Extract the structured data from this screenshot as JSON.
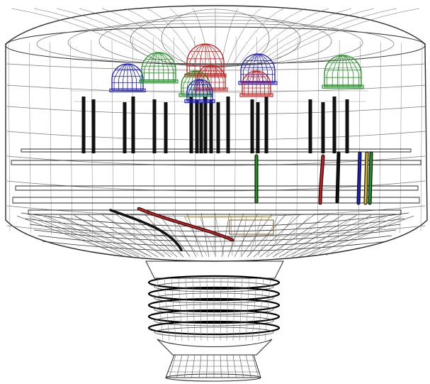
{
  "figure": {
    "background": "#ffffff",
    "wire_color": "#2a2a2a",
    "components": {
      "housing": "wireframe-dome-housing",
      "base": "screw-base",
      "leds": [
        {
          "color": "blue"
        },
        {
          "color": "green"
        },
        {
          "color": "red"
        },
        {
          "color": "green"
        },
        {
          "color": "red"
        },
        {
          "color": "blue"
        },
        {
          "color": "red"
        },
        {
          "color": "green"
        },
        {
          "color": "blue"
        }
      ],
      "wires": [
        "green",
        "red",
        "black",
        "blue",
        "yellow",
        "green"
      ]
    },
    "palette": {
      "blue": "#1f1fbf",
      "green": "#1f8f1f",
      "red": "#c41f1f",
      "black": "#111111",
      "yellow": "#c9b030"
    }
  }
}
